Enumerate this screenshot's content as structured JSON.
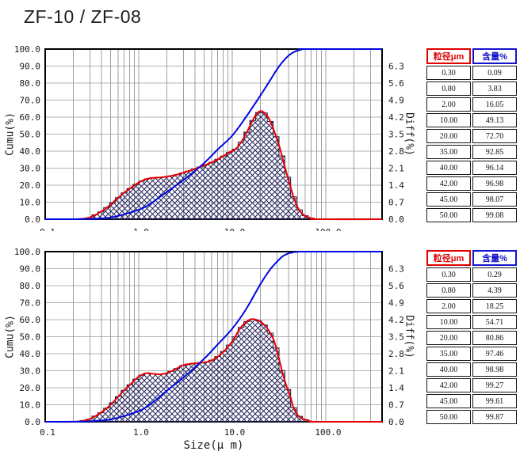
{
  "title": "ZF-10 / ZF-08",
  "axis": {
    "x_label": "Size(μ m)",
    "left_label": "Cumu(%)",
    "right_label": "Diff(%)",
    "x_range": [
      0.1,
      400
    ],
    "x_ticks": {
      "values": [
        0.1,
        1,
        10,
        100
      ],
      "labels": [
        "0.1",
        "1.0",
        "10.0",
        "100.0"
      ]
    },
    "left_range": [
      0,
      100
    ],
    "left_ticks": [
      "100.0",
      "90.0",
      "80.0",
      "70.0",
      "60.0",
      "50.0",
      "40.0",
      "30.0",
      "20.0",
      "10.0",
      "0.0"
    ],
    "right_range": [
      0,
      7
    ],
    "right_ticks": [
      "6.3",
      "5.6",
      "4.9",
      "4.2",
      "3.5",
      "2.8",
      "2.1",
      "1.4",
      "0.7",
      "0.0"
    ],
    "grid": true,
    "scale": "log-x"
  },
  "colors": {
    "cumulative": "#0008e0",
    "differential": "#e80000",
    "grid_h": "#b3b3b3",
    "grid_v": "#9f9f9f",
    "plot_border": "#000000",
    "hatch": "#23235c",
    "step_outline": "#1b1b4e",
    "tick_text": "#1a1a1a",
    "header_size": "#e00000",
    "header_content": "#1414cc"
  },
  "table_headers": [
    "粒径μm",
    "含量%"
  ],
  "chart_data": [
    {
      "type": "line",
      "legend_position": "none",
      "series": [
        {
          "name": "cumulative",
          "axis": "left",
          "x": [
            0.1,
            0.2,
            0.3,
            0.5,
            0.8,
            1.2,
            2,
            3,
            5,
            7,
            10,
            14,
            20,
            25,
            30,
            35,
            40,
            42,
            45,
            50,
            55,
            60,
            400
          ],
          "y": [
            0,
            0.02,
            0.09,
            1.0,
            3.83,
            7.5,
            16.05,
            23,
            33,
            41,
            49.13,
            60,
            72.7,
            81,
            88,
            92.85,
            96.14,
            96.98,
            98.07,
            99.08,
            99.7,
            100,
            100
          ]
        },
        {
          "name": "differential",
          "axis": "right",
          "x": [
            0.1,
            0.2,
            0.25,
            0.3,
            0.4,
            0.5,
            0.6,
            0.7,
            0.85,
            1.0,
            1.2,
            1.4,
            1.7,
            2.0,
            2.5,
            3.2,
            4.0,
            5.0,
            6.3,
            8.0,
            9.5,
            10.5,
            12,
            14,
            16,
            18,
            20,
            22,
            25,
            28,
            32,
            36,
            40,
            45,
            50,
            56,
            63,
            72,
            80,
            400
          ],
          "y": [
            0,
            0,
            0.02,
            0.07,
            0.32,
            0.6,
            0.88,
            1.09,
            1.33,
            1.51,
            1.65,
            1.7,
            1.72,
            1.75,
            1.82,
            1.95,
            2.07,
            2.21,
            2.37,
            2.59,
            2.77,
            2.84,
            3.08,
            3.5,
            3.96,
            4.31,
            4.45,
            4.38,
            4.1,
            3.64,
            2.98,
            2.24,
            1.61,
            0.95,
            0.49,
            0.22,
            0.1,
            0.03,
            0,
            0
          ]
        }
      ],
      "table": {
        "headers": [
          "粒径μm",
          "含量%"
        ],
        "rows": [
          [
            "0.30",
            "0.09"
          ],
          [
            "0.80",
            "3.83"
          ],
          [
            "2.00",
            "16.05"
          ],
          [
            "10.00",
            "49.13"
          ],
          [
            "20.00",
            "72.70"
          ],
          [
            "35.00",
            "92.85"
          ],
          [
            "40.00",
            "96.14"
          ],
          [
            "42.00",
            "96.98"
          ],
          [
            "45.00",
            "98.07"
          ],
          [
            "50.00",
            "99.08"
          ]
        ]
      }
    },
    {
      "type": "line",
      "legend_position": "none",
      "series": [
        {
          "name": "cumulative",
          "axis": "left",
          "x": [
            0.1,
            0.2,
            0.3,
            0.5,
            0.8,
            1.2,
            2,
            3,
            5,
            7,
            10,
            14,
            20,
            25,
            30,
            35,
            40,
            42,
            45,
            50,
            60,
            400
          ],
          "y": [
            0,
            0.05,
            0.29,
            1.4,
            4.39,
            8.5,
            18.25,
            26,
            37,
            45.5,
            54.71,
            66,
            80.86,
            89,
            94,
            97.46,
            98.98,
            99.27,
            99.61,
            99.87,
            100,
            100
          ]
        },
        {
          "name": "differential",
          "axis": "right",
          "x": [
            0.1,
            0.2,
            0.25,
            0.3,
            0.4,
            0.5,
            0.6,
            0.7,
            0.85,
            1.0,
            1.2,
            1.4,
            1.7,
            2.0,
            2.5,
            3.0,
            3.6,
            4.3,
            5.2,
            6.3,
            7.5,
            9.0,
            10.5,
            12,
            14,
            16,
            18,
            20,
            22,
            25,
            28,
            31,
            34,
            37,
            40,
            42,
            45,
            50,
            56,
            63,
            70,
            80,
            400
          ],
          "y": [
            0,
            0,
            0.04,
            0.11,
            0.39,
            0.7,
            1.02,
            1.3,
            1.61,
            1.86,
            2.0,
            1.98,
            1.95,
            2.0,
            2.17,
            2.33,
            2.39,
            2.42,
            2.45,
            2.56,
            2.77,
            3.08,
            3.43,
            3.82,
            4.1,
            4.22,
            4.2,
            4.12,
            3.99,
            3.71,
            3.33,
            2.73,
            2.1,
            1.61,
            1.23,
            1.02,
            0.6,
            0.28,
            0.14,
            0.06,
            0.01,
            0,
            0
          ]
        }
      ],
      "table": {
        "headers": [
          "粒径μm",
          "含量%"
        ],
        "rows": [
          [
            "0.30",
            "0.29"
          ],
          [
            "0.80",
            "4.39"
          ],
          [
            "2.00",
            "18.25"
          ],
          [
            "10.00",
            "54.71"
          ],
          [
            "20.00",
            "80.86"
          ],
          [
            "35.00",
            "97.46"
          ],
          [
            "40.00",
            "98.98"
          ],
          [
            "42.00",
            "99.27"
          ],
          [
            "45.00",
            "99.61"
          ],
          [
            "50.00",
            "99.87"
          ]
        ]
      }
    }
  ]
}
